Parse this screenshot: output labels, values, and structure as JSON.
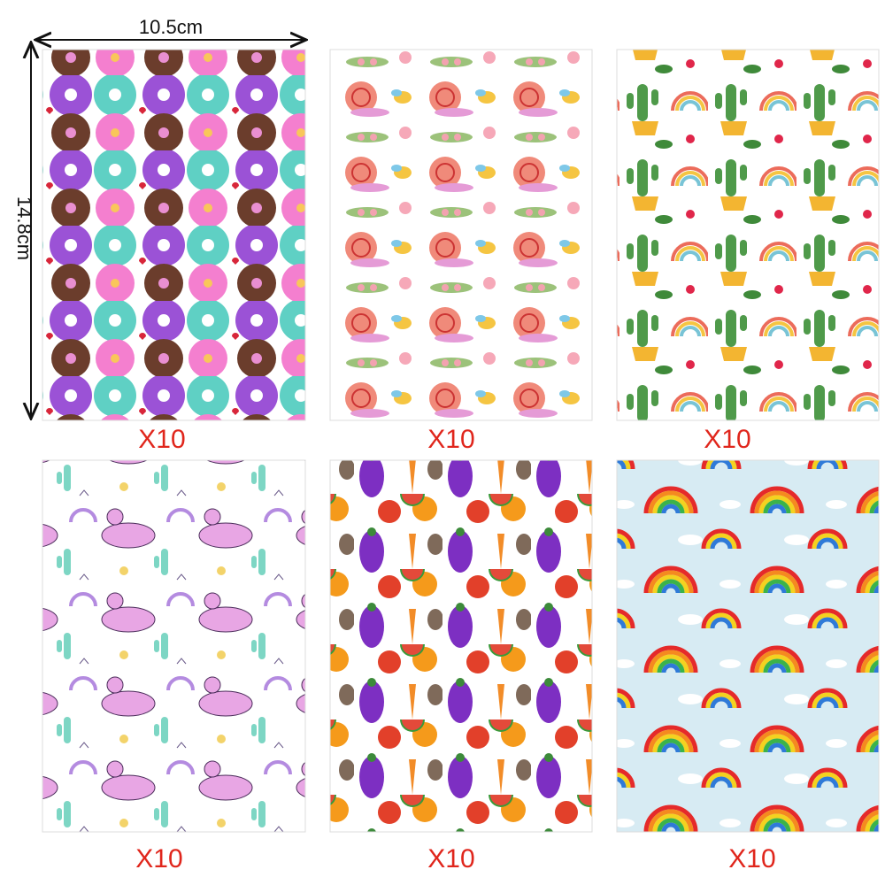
{
  "dimensions": {
    "width": "10.5cm",
    "height": "14.8cm"
  },
  "cards": [
    {
      "label": "X10"
    },
    {
      "label": "X10"
    },
    {
      "label": "X10"
    },
    {
      "label": "X10"
    },
    {
      "label": "X10"
    },
    {
      "label": "X10"
    }
  ]
}
